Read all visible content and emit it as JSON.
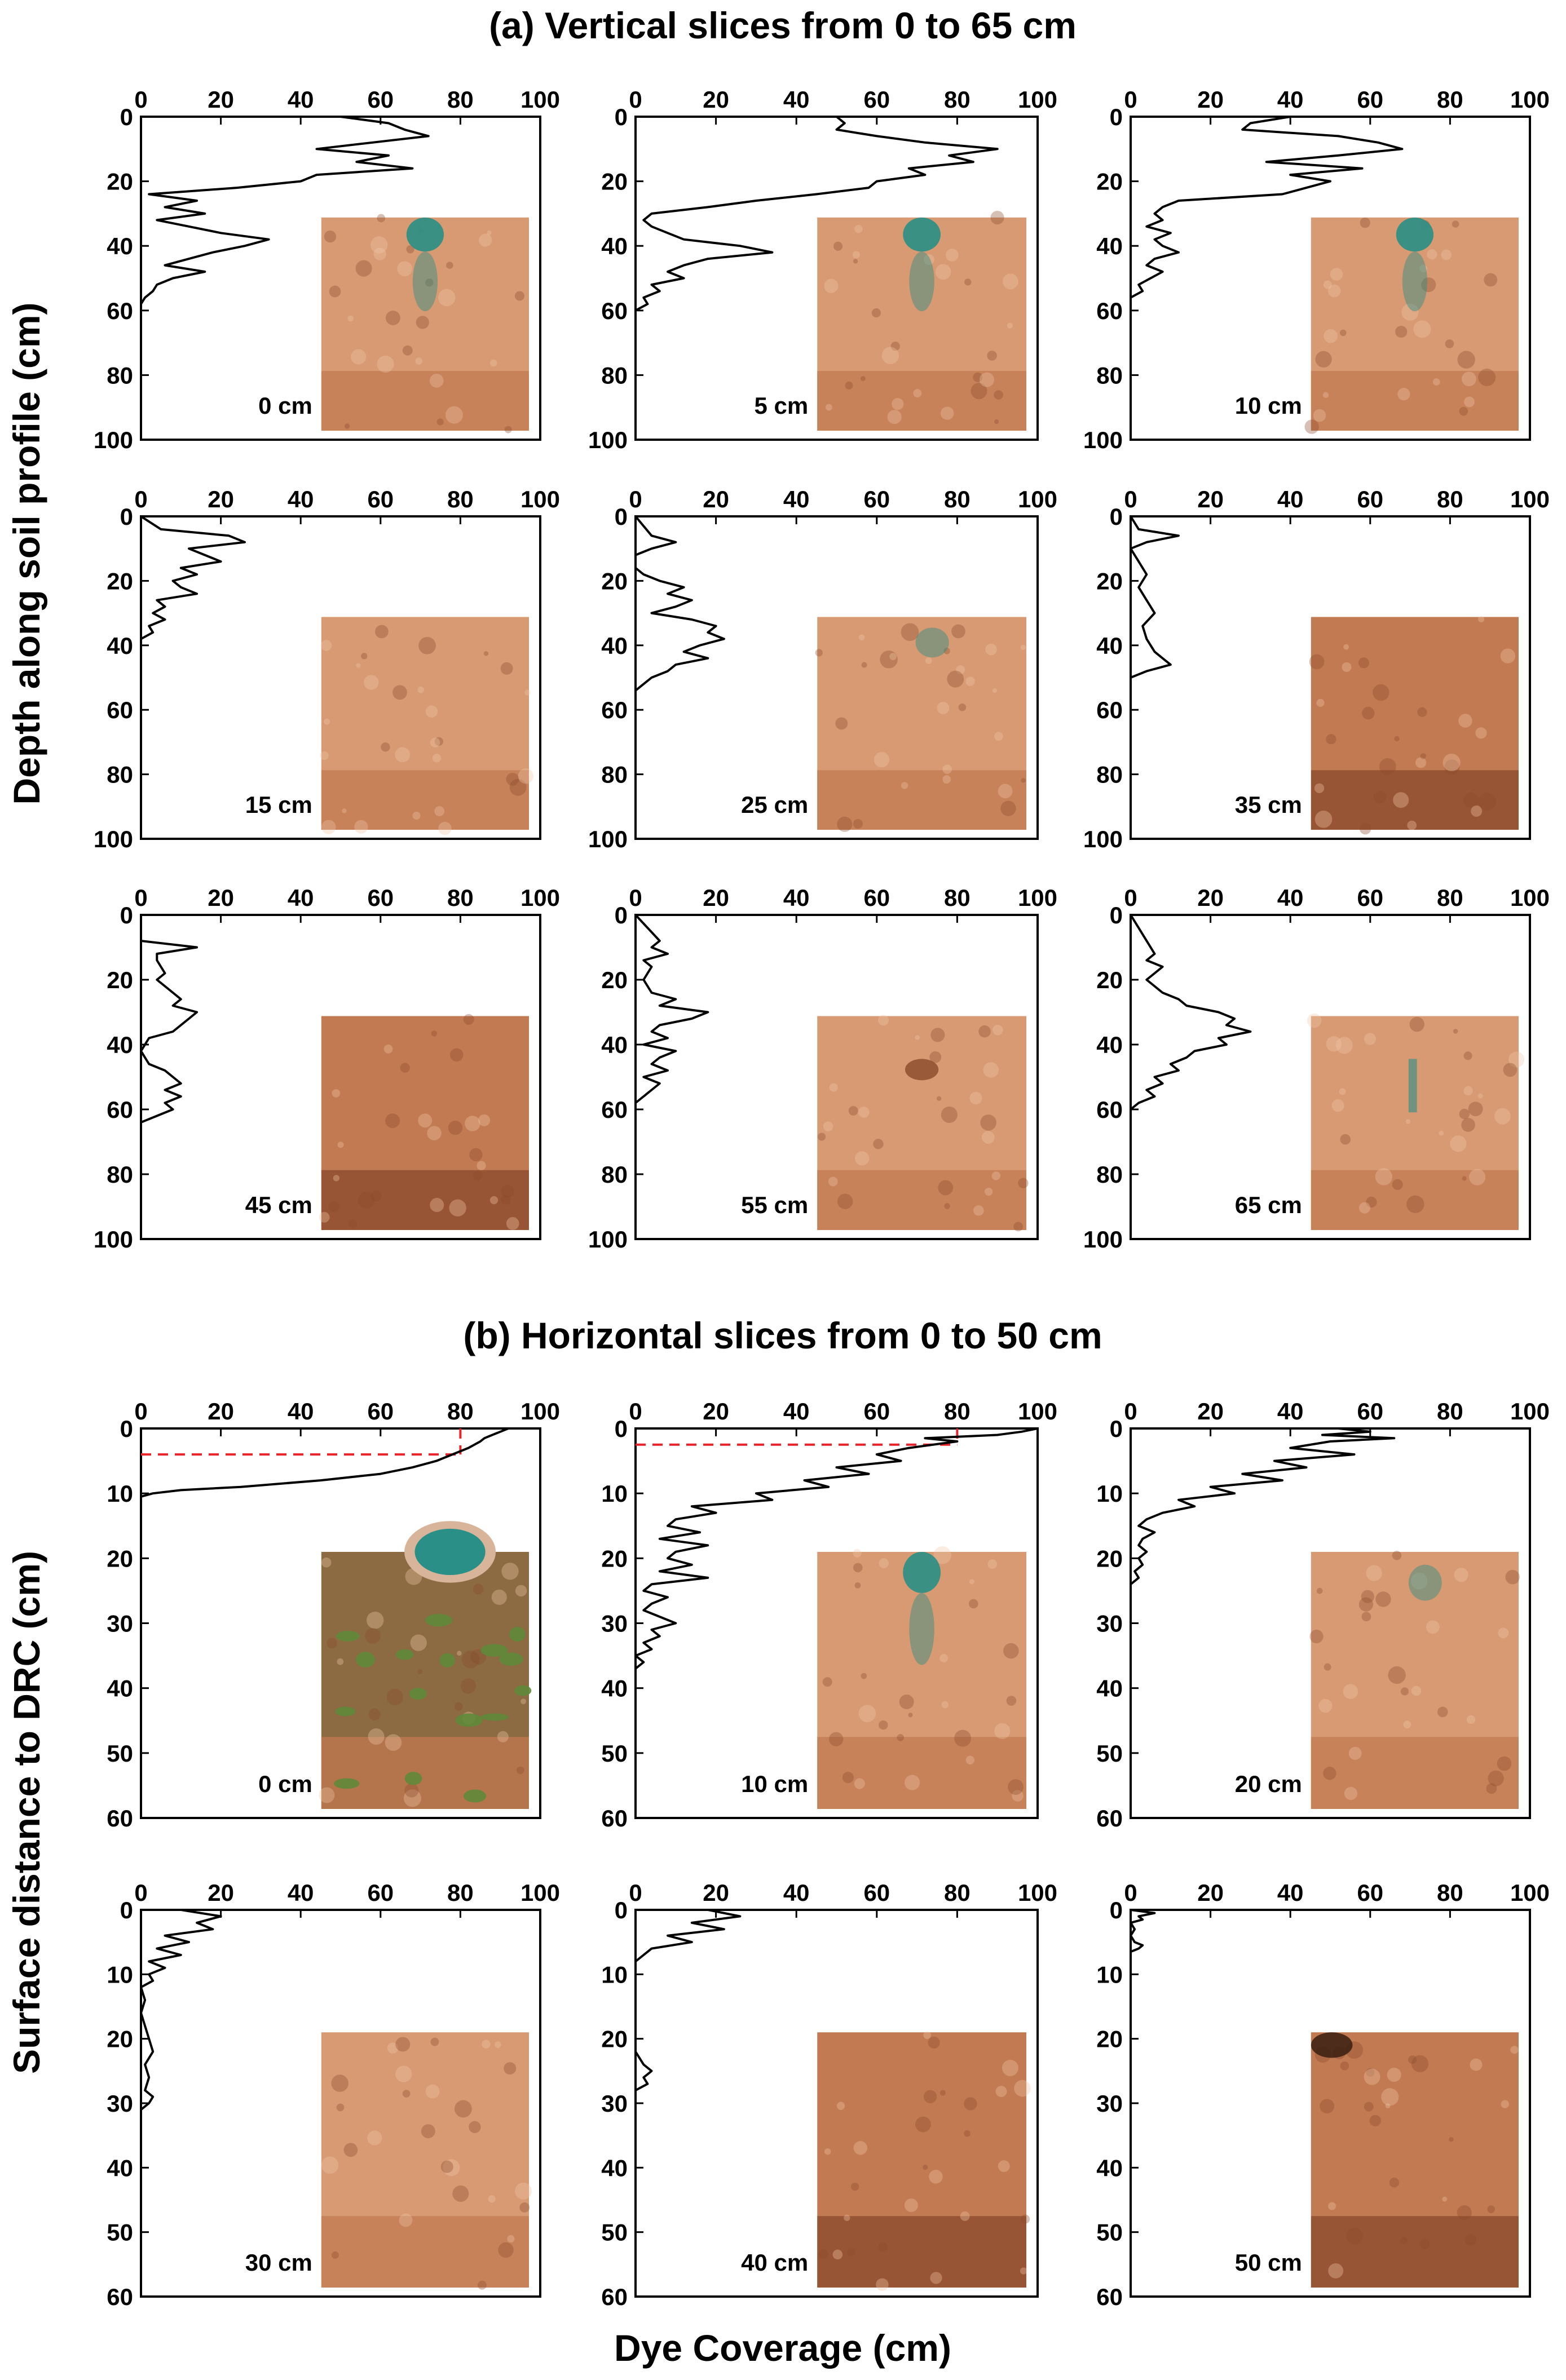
{
  "figure": {
    "section_a_title": "(a) Vertical slices from 0 to 65 cm",
    "section_b_title": "(b) Horizontal  slices from 0 to 50 cm",
    "ylabel_a": "Depth along soil profile (cm)",
    "ylabel_b": "Surface distance to DRC (cm)",
    "xlabel": "Dye Coverage (cm)"
  },
  "colors": {
    "curve": "#000000",
    "reference_line": "#e8232a",
    "soil_light": "#d89a73",
    "soil_mid": "#c27a52",
    "soil_dark": "#8a4a2c",
    "dye_blue": "#2a8f86",
    "grass_green": "#5f8a3a",
    "ground_brown": "#8c6a42"
  },
  "chart_data": [
    {
      "id": "a1",
      "type": "line",
      "section": "a",
      "label": "0 cm",
      "xlim": [
        0,
        100
      ],
      "ylim": [
        0,
        100
      ],
      "xticks": [
        0,
        20,
        40,
        60,
        80,
        100
      ],
      "yticks": [
        0,
        20,
        40,
        60,
        80,
        100
      ],
      "photo": "soil-dye",
      "y": [
        0,
        2,
        4,
        6,
        8,
        10,
        12,
        14,
        16,
        18,
        20,
        22,
        24,
        26,
        28,
        30,
        32,
        34,
        36,
        38,
        40,
        42,
        44,
        46,
        48,
        50,
        52,
        54,
        56,
        58
      ],
      "x": [
        50,
        62,
        66,
        72,
        58,
        44,
        62,
        54,
        68,
        44,
        40,
        24,
        2,
        14,
        6,
        16,
        4,
        12,
        20,
        32,
        26,
        18,
        12,
        6,
        16,
        8,
        4,
        3,
        1,
        0
      ]
    },
    {
      "id": "a2",
      "type": "line",
      "section": "a",
      "label": "5 cm",
      "xlim": [
        0,
        100
      ],
      "ylim": [
        0,
        100
      ],
      "xticks": [
        0,
        20,
        40,
        60,
        80,
        100
      ],
      "yticks": [
        0,
        20,
        40,
        60,
        80,
        100
      ],
      "photo": "soil-dye",
      "y": [
        0,
        2,
        4,
        6,
        8,
        10,
        12,
        14,
        16,
        18,
        20,
        22,
        24,
        26,
        28,
        30,
        32,
        34,
        36,
        38,
        40,
        42,
        44,
        46,
        48,
        50,
        52,
        54,
        56,
        58,
        60
      ],
      "x": [
        50,
        52,
        50,
        60,
        72,
        90,
        78,
        84,
        68,
        72,
        60,
        58,
        45,
        30,
        18,
        4,
        2,
        4,
        8,
        12,
        26,
        34,
        18,
        12,
        8,
        12,
        4,
        6,
        2,
        3,
        0
      ]
    },
    {
      "id": "a3",
      "type": "line",
      "section": "a",
      "label": "10 cm",
      "xlim": [
        0,
        100
      ],
      "ylim": [
        0,
        100
      ],
      "xticks": [
        0,
        20,
        40,
        60,
        80,
        100
      ],
      "yticks": [
        0,
        20,
        40,
        60,
        80,
        100
      ],
      "photo": "soil-dye",
      "y": [
        0,
        2,
        4,
        6,
        8,
        10,
        12,
        14,
        16,
        18,
        20,
        22,
        24,
        26,
        28,
        30,
        32,
        34,
        36,
        38,
        40,
        42,
        44,
        46,
        48,
        50,
        52,
        54,
        56
      ],
      "x": [
        40,
        30,
        28,
        52,
        62,
        68,
        52,
        34,
        58,
        40,
        50,
        44,
        38,
        12,
        8,
        6,
        8,
        4,
        10,
        6,
        8,
        12,
        6,
        4,
        8,
        5,
        2,
        3,
        0
      ]
    },
    {
      "id": "a4",
      "type": "line",
      "section": "a",
      "label": "15 cm",
      "xlim": [
        0,
        100
      ],
      "ylim": [
        0,
        100
      ],
      "xticks": [
        0,
        20,
        40,
        60,
        80,
        100
      ],
      "yticks": [
        0,
        20,
        40,
        60,
        80,
        100
      ],
      "photo": "soil",
      "y": [
        0,
        4,
        6,
        8,
        10,
        12,
        14,
        16,
        18,
        20,
        22,
        24,
        26,
        28,
        30,
        32,
        34,
        36,
        38
      ],
      "x": [
        0,
        5,
        22,
        26,
        12,
        16,
        20,
        10,
        14,
        8,
        10,
        14,
        4,
        6,
        3,
        6,
        2,
        3,
        0
      ]
    },
    {
      "id": "a5",
      "type": "line",
      "section": "a",
      "label": "25 cm",
      "xlim": [
        0,
        100
      ],
      "ylim": [
        0,
        100
      ],
      "xticks": [
        0,
        20,
        40,
        60,
        80,
        100
      ],
      "yticks": [
        0,
        20,
        40,
        60,
        80,
        100
      ],
      "photo": "soil-dye-faint",
      "y": [
        0,
        6,
        8,
        10,
        12,
        16,
        18,
        20,
        22,
        24,
        26,
        28,
        30,
        32,
        34,
        36,
        38,
        40,
        42,
        44,
        46,
        48,
        50,
        52,
        54
      ],
      "x": [
        0,
        4,
        10,
        4,
        0,
        0,
        2,
        6,
        12,
        8,
        14,
        10,
        4,
        14,
        20,
        18,
        22,
        16,
        12,
        18,
        10,
        8,
        4,
        2,
        0
      ]
    },
    {
      "id": "a6",
      "type": "line",
      "section": "a",
      "label": "35 cm",
      "xlim": [
        0,
        100
      ],
      "ylim": [
        0,
        100
      ],
      "xticks": [
        0,
        20,
        40,
        60,
        80,
        100
      ],
      "yticks": [
        0,
        20,
        40,
        60,
        80,
        100
      ],
      "photo": "soil-dark",
      "y": [
        0,
        4,
        6,
        8,
        10,
        14,
        18,
        22,
        26,
        30,
        34,
        38,
        42,
        44,
        46,
        48,
        50
      ],
      "x": [
        0,
        2,
        12,
        4,
        0,
        2,
        4,
        2,
        4,
        6,
        3,
        4,
        6,
        8,
        10,
        4,
        0
      ]
    },
    {
      "id": "a7",
      "type": "line",
      "section": "a",
      "label": "45 cm",
      "xlim": [
        0,
        100
      ],
      "ylim": [
        0,
        100
      ],
      "xticks": [
        0,
        20,
        40,
        60,
        80,
        100
      ],
      "yticks": [
        0,
        20,
        40,
        60,
        80,
        100
      ],
      "photo": "soil-dark",
      "y": [
        0,
        8,
        10,
        12,
        14,
        18,
        20,
        22,
        26,
        28,
        30,
        32,
        34,
        36,
        38,
        42,
        46,
        48,
        50,
        52,
        54,
        56,
        58,
        60,
        62,
        64
      ],
      "x": [
        0,
        0,
        14,
        4,
        4,
        6,
        4,
        6,
        10,
        8,
        14,
        12,
        10,
        8,
        2,
        0,
        2,
        6,
        8,
        10,
        6,
        10,
        6,
        8,
        4,
        0
      ]
    },
    {
      "id": "a8",
      "type": "line",
      "section": "a",
      "label": "55 cm",
      "xlim": [
        0,
        100
      ],
      "ylim": [
        0,
        100
      ],
      "xticks": [
        0,
        20,
        40,
        60,
        80,
        100
      ],
      "yticks": [
        0,
        20,
        40,
        60,
        80,
        100
      ],
      "photo": "soil-pebble",
      "y": [
        0,
        8,
        10,
        12,
        14,
        16,
        20,
        24,
        26,
        28,
        30,
        32,
        34,
        36,
        38,
        40,
        42,
        44,
        46,
        48,
        50,
        52,
        54,
        56,
        58
      ],
      "x": [
        0,
        6,
        4,
        8,
        2,
        4,
        2,
        4,
        10,
        6,
        18,
        14,
        6,
        4,
        8,
        2,
        10,
        6,
        4,
        8,
        2,
        6,
        4,
        2,
        0
      ]
    },
    {
      "id": "a9",
      "type": "line",
      "section": "a",
      "label": "65 cm",
      "xlim": [
        0,
        100
      ],
      "ylim": [
        0,
        100
      ],
      "xticks": [
        0,
        20,
        40,
        60,
        80,
        100
      ],
      "yticks": [
        0,
        20,
        40,
        60,
        80,
        100
      ],
      "photo": "soil-dye-streak",
      "y": [
        0,
        12,
        14,
        16,
        18,
        20,
        22,
        24,
        26,
        28,
        30,
        32,
        34,
        36,
        38,
        40,
        42,
        44,
        46,
        48,
        50,
        52,
        54,
        56,
        58,
        60
      ],
      "x": [
        0,
        6,
        4,
        8,
        6,
        4,
        6,
        8,
        12,
        14,
        22,
        26,
        24,
        30,
        22,
        24,
        16,
        14,
        10,
        12,
        6,
        8,
        4,
        6,
        2,
        0
      ]
    },
    {
      "id": "b1",
      "type": "line",
      "section": "b",
      "label": "0 cm",
      "xlim": [
        0,
        100
      ],
      "ylim": [
        0,
        60
      ],
      "xticks": [
        0,
        20,
        40,
        60,
        80,
        100
      ],
      "yticks": [
        0,
        10,
        20,
        30,
        40,
        50,
        60
      ],
      "photo": "ground-surface",
      "y": [
        0,
        0.5,
        1,
        1.5,
        2,
        3,
        4,
        5,
        6,
        7,
        8,
        9,
        9.5,
        10,
        10.5
      ],
      "x": [
        92,
        90,
        88,
        86,
        85,
        82,
        78,
        74,
        68,
        60,
        45,
        25,
        10,
        3,
        0
      ],
      "reference": {
        "x": 80,
        "y": 4
      }
    },
    {
      "id": "b2",
      "type": "line",
      "section": "b",
      "label": "10 cm",
      "xlim": [
        0,
        100
      ],
      "ylim": [
        0,
        60
      ],
      "xticks": [
        0,
        20,
        40,
        60,
        80,
        100
      ],
      "yticks": [
        0,
        10,
        20,
        30,
        40,
        50,
        60
      ],
      "photo": "soil-dye",
      "y": [
        0,
        0.5,
        1,
        1.5,
        2,
        3,
        4,
        5,
        6,
        7,
        8,
        9,
        10,
        11,
        12,
        13,
        14,
        15,
        16,
        17,
        18,
        19,
        20,
        21,
        22,
        23,
        24,
        25,
        26,
        27,
        28,
        29,
        30,
        31,
        32,
        33,
        34,
        35,
        36,
        37
      ],
      "x": [
        100,
        96,
        90,
        72,
        80,
        68,
        60,
        66,
        50,
        58,
        42,
        48,
        30,
        34,
        14,
        20,
        10,
        8,
        16,
        6,
        18,
        10,
        8,
        14,
        6,
        18,
        4,
        2,
        8,
        4,
        2,
        6,
        10,
        4,
        6,
        2,
        4,
        0,
        2,
        0
      ],
      "reference": {
        "x": 80,
        "y": 2.5
      }
    },
    {
      "id": "b3",
      "type": "line",
      "section": "b",
      "label": "20 cm",
      "xlim": [
        0,
        100
      ],
      "ylim": [
        0,
        60
      ],
      "xticks": [
        0,
        20,
        40,
        60,
        80,
        100
      ],
      "yticks": [
        0,
        10,
        20,
        30,
        40,
        50,
        60
      ],
      "photo": "soil-dye-faint",
      "y": [
        0,
        0.5,
        1,
        1.5,
        2,
        3,
        4,
        5,
        6,
        7,
        8,
        9,
        10,
        11,
        12,
        13,
        14,
        15,
        16,
        17,
        18,
        19,
        20,
        21,
        22,
        23,
        24
      ],
      "x": [
        52,
        60,
        48,
        66,
        50,
        40,
        56,
        36,
        44,
        28,
        38,
        20,
        26,
        12,
        16,
        8,
        4,
        2,
        6,
        3,
        2,
        4,
        2,
        3,
        1,
        2,
        0
      ]
    },
    {
      "id": "b4",
      "type": "line",
      "section": "b",
      "label": "30 cm",
      "xlim": [
        0,
        100
      ],
      "ylim": [
        0,
        60
      ],
      "xticks": [
        0,
        20,
        40,
        60,
        80,
        100
      ],
      "yticks": [
        0,
        10,
        20,
        30,
        40,
        50,
        60
      ],
      "photo": "soil",
      "y": [
        0,
        1,
        2,
        3,
        4,
        5,
        6,
        7,
        8,
        9,
        10,
        11,
        12,
        14,
        16,
        18,
        20,
        22,
        24,
        26,
        28,
        29,
        30,
        31
      ],
      "x": [
        10,
        20,
        14,
        18,
        6,
        12,
        4,
        10,
        2,
        6,
        2,
        3,
        0,
        1,
        0,
        1,
        2,
        3,
        1,
        2,
        1,
        3,
        2,
        0
      ]
    },
    {
      "id": "b5",
      "type": "line",
      "section": "b",
      "label": "40 cm",
      "xlim": [
        0,
        100
      ],
      "ylim": [
        0,
        60
      ],
      "xticks": [
        0,
        20,
        40,
        60,
        80,
        100
      ],
      "yticks": [
        0,
        10,
        20,
        30,
        40,
        50,
        60
      ],
      "photo": "soil-dark",
      "y": [
        0,
        1,
        2,
        3,
        4,
        5,
        6,
        7,
        8,
        10,
        14,
        18,
        22,
        24,
        25,
        26,
        27,
        28
      ],
      "x": [
        18,
        26,
        14,
        22,
        8,
        14,
        4,
        2,
        0,
        0,
        0,
        0,
        0,
        2,
        4,
        2,
        3,
        0
      ]
    },
    {
      "id": "b6",
      "type": "line",
      "section": "b",
      "label": "50 cm",
      "xlim": [
        0,
        100
      ],
      "ylim": [
        0,
        60
      ],
      "xticks": [
        0,
        20,
        40,
        60,
        80,
        100
      ],
      "yticks": [
        0,
        10,
        20,
        30,
        40,
        50,
        60
      ],
      "photo": "soil-dark-corner",
      "y": [
        0,
        0.5,
        1,
        1.5,
        2,
        3,
        4,
        5,
        5.5,
        6,
        6.5,
        7
      ],
      "x": [
        0,
        6,
        2,
        3,
        0,
        1,
        0,
        1,
        3,
        2,
        0,
        0
      ]
    }
  ]
}
